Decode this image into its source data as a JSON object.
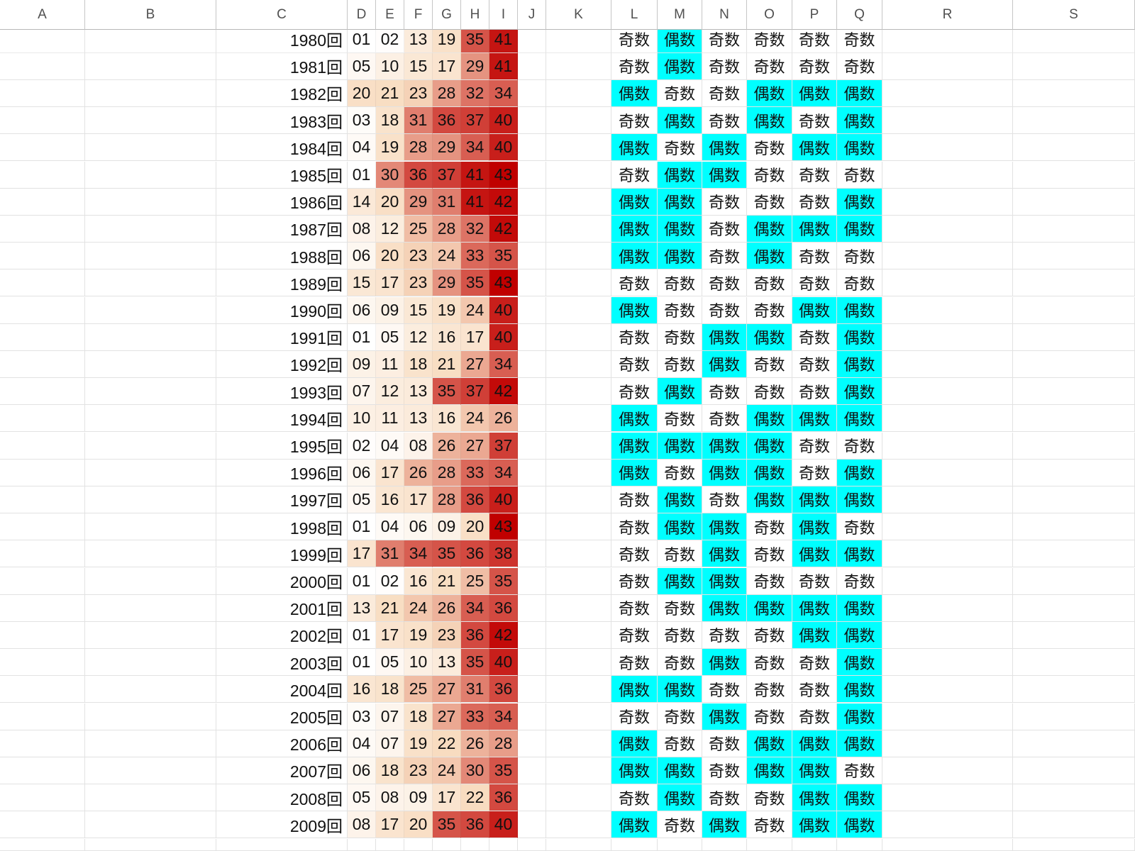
{
  "columns": [
    "A",
    "B",
    "C",
    "D",
    "E",
    "F",
    "G",
    "H",
    "I",
    "J",
    "K",
    "L",
    "M",
    "N",
    "O",
    "P",
    "Q",
    "R",
    "S"
  ],
  "colors": {
    "even_highlight": "#00ffff",
    "heat_low": "#ffffff",
    "heat_mid": "#f8dcc0",
    "heat_high": "#c00000"
  },
  "rows": [
    {
      "round": "1980回",
      "nums": [
        "01",
        "02",
        "13",
        "19",
        "35",
        "41"
      ],
      "parity": [
        "奇数",
        "偶数",
        "奇数",
        "奇数",
        "奇数",
        "奇数"
      ]
    },
    {
      "round": "1981回",
      "nums": [
        "05",
        "10",
        "15",
        "17",
        "29",
        "41"
      ],
      "parity": [
        "奇数",
        "偶数",
        "奇数",
        "奇数",
        "奇数",
        "奇数"
      ]
    },
    {
      "round": "1982回",
      "nums": [
        "20",
        "21",
        "23",
        "28",
        "32",
        "34"
      ],
      "parity": [
        "偶数",
        "奇数",
        "奇数",
        "偶数",
        "偶数",
        "偶数"
      ]
    },
    {
      "round": "1983回",
      "nums": [
        "03",
        "18",
        "31",
        "36",
        "37",
        "40"
      ],
      "parity": [
        "奇数",
        "偶数",
        "奇数",
        "偶数",
        "奇数",
        "偶数"
      ]
    },
    {
      "round": "1984回",
      "nums": [
        "04",
        "19",
        "28",
        "29",
        "34",
        "40"
      ],
      "parity": [
        "偶数",
        "奇数",
        "偶数",
        "奇数",
        "偶数",
        "偶数"
      ]
    },
    {
      "round": "1985回",
      "nums": [
        "01",
        "30",
        "36",
        "37",
        "41",
        "43"
      ],
      "parity": [
        "奇数",
        "偶数",
        "偶数",
        "奇数",
        "奇数",
        "奇数"
      ]
    },
    {
      "round": "1986回",
      "nums": [
        "14",
        "20",
        "29",
        "31",
        "41",
        "42"
      ],
      "parity": [
        "偶数",
        "偶数",
        "奇数",
        "奇数",
        "奇数",
        "偶数"
      ]
    },
    {
      "round": "1987回",
      "nums": [
        "08",
        "12",
        "25",
        "28",
        "32",
        "42"
      ],
      "parity": [
        "偶数",
        "偶数",
        "奇数",
        "偶数",
        "偶数",
        "偶数"
      ]
    },
    {
      "round": "1988回",
      "nums": [
        "06",
        "20",
        "23",
        "24",
        "33",
        "35"
      ],
      "parity": [
        "偶数",
        "偶数",
        "奇数",
        "偶数",
        "奇数",
        "奇数"
      ]
    },
    {
      "round": "1989回",
      "nums": [
        "15",
        "17",
        "23",
        "29",
        "35",
        "43"
      ],
      "parity": [
        "奇数",
        "奇数",
        "奇数",
        "奇数",
        "奇数",
        "奇数"
      ]
    },
    {
      "round": "1990回",
      "nums": [
        "06",
        "09",
        "15",
        "19",
        "24",
        "40"
      ],
      "parity": [
        "偶数",
        "奇数",
        "奇数",
        "奇数",
        "偶数",
        "偶数"
      ]
    },
    {
      "round": "1991回",
      "nums": [
        "01",
        "05",
        "12",
        "16",
        "17",
        "40"
      ],
      "parity": [
        "奇数",
        "奇数",
        "偶数",
        "偶数",
        "奇数",
        "偶数"
      ]
    },
    {
      "round": "1992回",
      "nums": [
        "09",
        "11",
        "18",
        "21",
        "27",
        "34"
      ],
      "parity": [
        "奇数",
        "奇数",
        "偶数",
        "奇数",
        "奇数",
        "偶数"
      ]
    },
    {
      "round": "1993回",
      "nums": [
        "07",
        "12",
        "13",
        "35",
        "37",
        "42"
      ],
      "parity": [
        "奇数",
        "偶数",
        "奇数",
        "奇数",
        "奇数",
        "偶数"
      ]
    },
    {
      "round": "1994回",
      "nums": [
        "10",
        "11",
        "13",
        "16",
        "24",
        "26"
      ],
      "parity": [
        "偶数",
        "奇数",
        "奇数",
        "偶数",
        "偶数",
        "偶数"
      ]
    },
    {
      "round": "1995回",
      "nums": [
        "02",
        "04",
        "08",
        "26",
        "27",
        "37"
      ],
      "parity": [
        "偶数",
        "偶数",
        "偶数",
        "偶数",
        "奇数",
        "奇数"
      ]
    },
    {
      "round": "1996回",
      "nums": [
        "06",
        "17",
        "26",
        "28",
        "33",
        "34"
      ],
      "parity": [
        "偶数",
        "奇数",
        "偶数",
        "偶数",
        "奇数",
        "偶数"
      ]
    },
    {
      "round": "1997回",
      "nums": [
        "05",
        "16",
        "17",
        "28",
        "36",
        "40"
      ],
      "parity": [
        "奇数",
        "偶数",
        "奇数",
        "偶数",
        "偶数",
        "偶数"
      ]
    },
    {
      "round": "1998回",
      "nums": [
        "01",
        "04",
        "06",
        "09",
        "20",
        "43"
      ],
      "parity": [
        "奇数",
        "偶数",
        "偶数",
        "奇数",
        "偶数",
        "奇数"
      ]
    },
    {
      "round": "1999回",
      "nums": [
        "17",
        "31",
        "34",
        "35",
        "36",
        "38"
      ],
      "parity": [
        "奇数",
        "奇数",
        "偶数",
        "奇数",
        "偶数",
        "偶数"
      ]
    },
    {
      "round": "2000回",
      "nums": [
        "01",
        "02",
        "16",
        "21",
        "25",
        "35"
      ],
      "parity": [
        "奇数",
        "偶数",
        "偶数",
        "奇数",
        "奇数",
        "奇数"
      ]
    },
    {
      "round": "2001回",
      "nums": [
        "13",
        "21",
        "24",
        "26",
        "34",
        "36"
      ],
      "parity": [
        "奇数",
        "奇数",
        "偶数",
        "偶数",
        "偶数",
        "偶数"
      ]
    },
    {
      "round": "2002回",
      "nums": [
        "01",
        "17",
        "19",
        "23",
        "36",
        "42"
      ],
      "parity": [
        "奇数",
        "奇数",
        "奇数",
        "奇数",
        "偶数",
        "偶数"
      ]
    },
    {
      "round": "2003回",
      "nums": [
        "01",
        "05",
        "10",
        "13",
        "35",
        "40"
      ],
      "parity": [
        "奇数",
        "奇数",
        "偶数",
        "奇数",
        "奇数",
        "偶数"
      ]
    },
    {
      "round": "2004回",
      "nums": [
        "16",
        "18",
        "25",
        "27",
        "31",
        "36"
      ],
      "parity": [
        "偶数",
        "偶数",
        "奇数",
        "奇数",
        "奇数",
        "偶数"
      ]
    },
    {
      "round": "2005回",
      "nums": [
        "03",
        "07",
        "18",
        "27",
        "33",
        "34"
      ],
      "parity": [
        "奇数",
        "奇数",
        "偶数",
        "奇数",
        "奇数",
        "偶数"
      ]
    },
    {
      "round": "2006回",
      "nums": [
        "04",
        "07",
        "19",
        "22",
        "26",
        "28"
      ],
      "parity": [
        "偶数",
        "奇数",
        "奇数",
        "偶数",
        "偶数",
        "偶数"
      ]
    },
    {
      "round": "2007回",
      "nums": [
        "06",
        "18",
        "23",
        "24",
        "30",
        "35"
      ],
      "parity": [
        "偶数",
        "偶数",
        "奇数",
        "偶数",
        "偶数",
        "奇数"
      ]
    },
    {
      "round": "2008回",
      "nums": [
        "05",
        "08",
        "09",
        "17",
        "22",
        "36"
      ],
      "parity": [
        "奇数",
        "偶数",
        "奇数",
        "奇数",
        "偶数",
        "偶数"
      ]
    },
    {
      "round": "2009回",
      "nums": [
        "08",
        "17",
        "20",
        "35",
        "36",
        "40"
      ],
      "parity": [
        "偶数",
        "奇数",
        "偶数",
        "奇数",
        "偶数",
        "偶数"
      ]
    }
  ]
}
